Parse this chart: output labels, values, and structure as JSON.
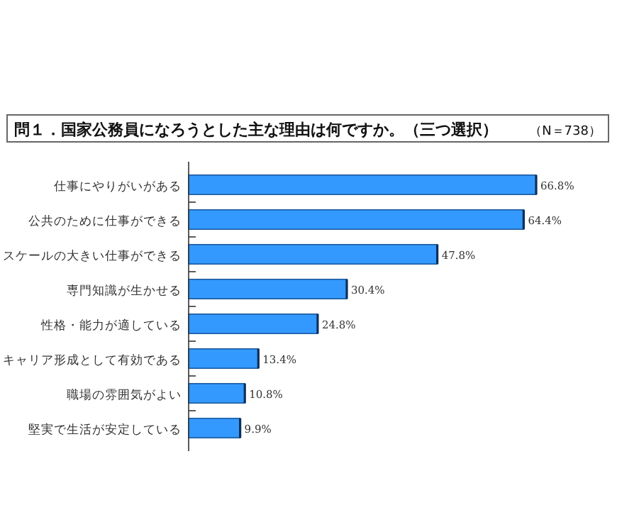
{
  "chart_data": {
    "type": "bar",
    "orientation": "horizontal",
    "title": "問１．国家公務員になろうとした主な理由は何ですか。（三つ選択）",
    "subtitle": "（N＝738）",
    "categories": [
      "仕事にやりがいがある",
      "公共のために仕事ができる",
      "スケールの大きい仕事ができる",
      "専門知識が生かせる",
      "性格・能力が適している",
      "キャリア形成として有効である",
      "職場の雰囲気がよい",
      "堅実で生活が安定している"
    ],
    "values": [
      66.8,
      64.4,
      47.8,
      30.4,
      24.8,
      13.4,
      10.8,
      9.9
    ],
    "value_labels": [
      "66.8%",
      "64.4%",
      "47.8%",
      "30.4%",
      "24.8%",
      "13.4%",
      "10.8%",
      "9.9%"
    ],
    "color": "#3399ff"
  }
}
